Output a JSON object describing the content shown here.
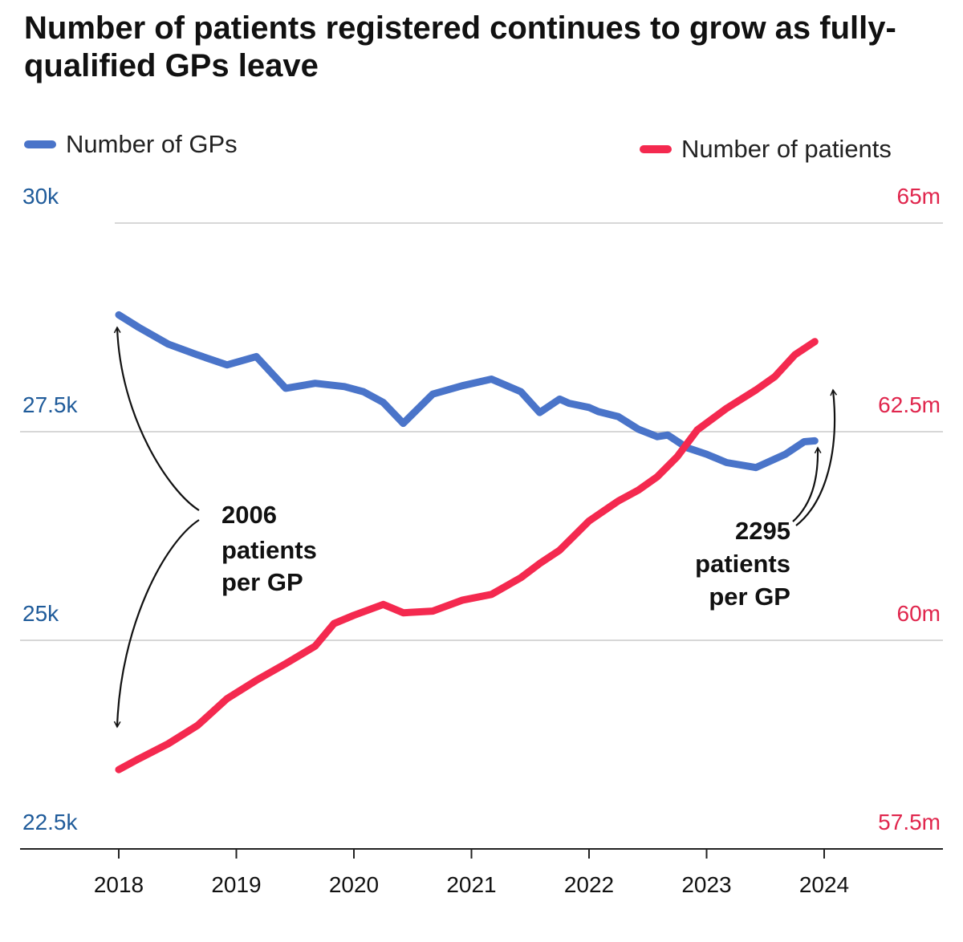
{
  "title": "Number of patients registered continues to grow as fully-qualified GPs leave",
  "legend": {
    "gps": {
      "label": "Number of GPs",
      "color": "#4a74c9"
    },
    "patients": {
      "label": "Number of patients",
      "color": "#f4294f"
    }
  },
  "annotations": {
    "start": [
      "2006",
      "patients",
      "per GP"
    ],
    "end": [
      "2295",
      "patients",
      "per GP"
    ]
  },
  "chart_data": {
    "type": "line",
    "title": "Number of patients registered continues to grow as fully-qualified GPs leave",
    "grid": true,
    "legend_position": "top",
    "x_ticks": [
      "2018",
      "2019",
      "2020",
      "2021",
      "2022",
      "2023",
      "2024"
    ],
    "xlim": [
      2017.9,
      2025.0
    ],
    "y_left": {
      "ticks": [
        "30k",
        "27.5k",
        "25k",
        "22.5k"
      ],
      "values": [
        30000,
        27500,
        25000,
        22500
      ],
      "ylim": [
        22500,
        30000
      ]
    },
    "y_right": {
      "ticks": [
        "65m",
        "62.5m",
        "60m",
        "57.5m"
      ],
      "values": [
        65,
        62.5,
        60,
        57.5
      ],
      "ylim": [
        57.5,
        65
      ]
    },
    "series": [
      {
        "name": "Number of GPs",
        "axis": "left",
        "color": "#4a74c9",
        "x": [
          2018.0,
          2018.17,
          2018.42,
          2018.67,
          2018.92,
          2019.17,
          2019.42,
          2019.67,
          2019.92,
          2020.08,
          2020.25,
          2020.42,
          2020.67,
          2020.92,
          2021.17,
          2021.42,
          2021.58,
          2021.75,
          2021.83,
          2022.0,
          2022.08,
          2022.25,
          2022.42,
          2022.58,
          2022.67,
          2022.83,
          2023.0,
          2023.17,
          2023.42,
          2023.67,
          2023.83,
          2023.92
        ],
        "y": [
          28900,
          28750,
          28550,
          28420,
          28300,
          28400,
          28020,
          28080,
          28040,
          27980,
          27850,
          27600,
          27950,
          28050,
          28130,
          27980,
          27730,
          27890,
          27840,
          27790,
          27740,
          27680,
          27530,
          27440,
          27460,
          27310,
          27230,
          27130,
          27070,
          27230,
          27380,
          27390
        ]
      },
      {
        "name": "Number of patients",
        "axis": "right",
        "color": "#f4294f",
        "x": [
          2018.0,
          2018.17,
          2018.42,
          2018.67,
          2018.92,
          2019.17,
          2019.42,
          2019.67,
          2019.83,
          2020.0,
          2020.25,
          2020.42,
          2020.67,
          2020.92,
          2021.17,
          2021.42,
          2021.58,
          2021.75,
          2022.0,
          2022.25,
          2022.42,
          2022.58,
          2022.75,
          2022.92,
          2023.17,
          2023.42,
          2023.58,
          2023.75,
          2023.92
        ],
        "y": [
          58.45,
          58.58,
          58.76,
          58.98,
          59.3,
          59.52,
          59.72,
          59.93,
          60.2,
          60.3,
          60.43,
          60.33,
          60.35,
          60.48,
          60.55,
          60.75,
          60.92,
          61.08,
          61.43,
          61.67,
          61.8,
          61.96,
          62.2,
          62.52,
          62.78,
          63.0,
          63.16,
          63.42,
          63.58
        ]
      }
    ]
  }
}
